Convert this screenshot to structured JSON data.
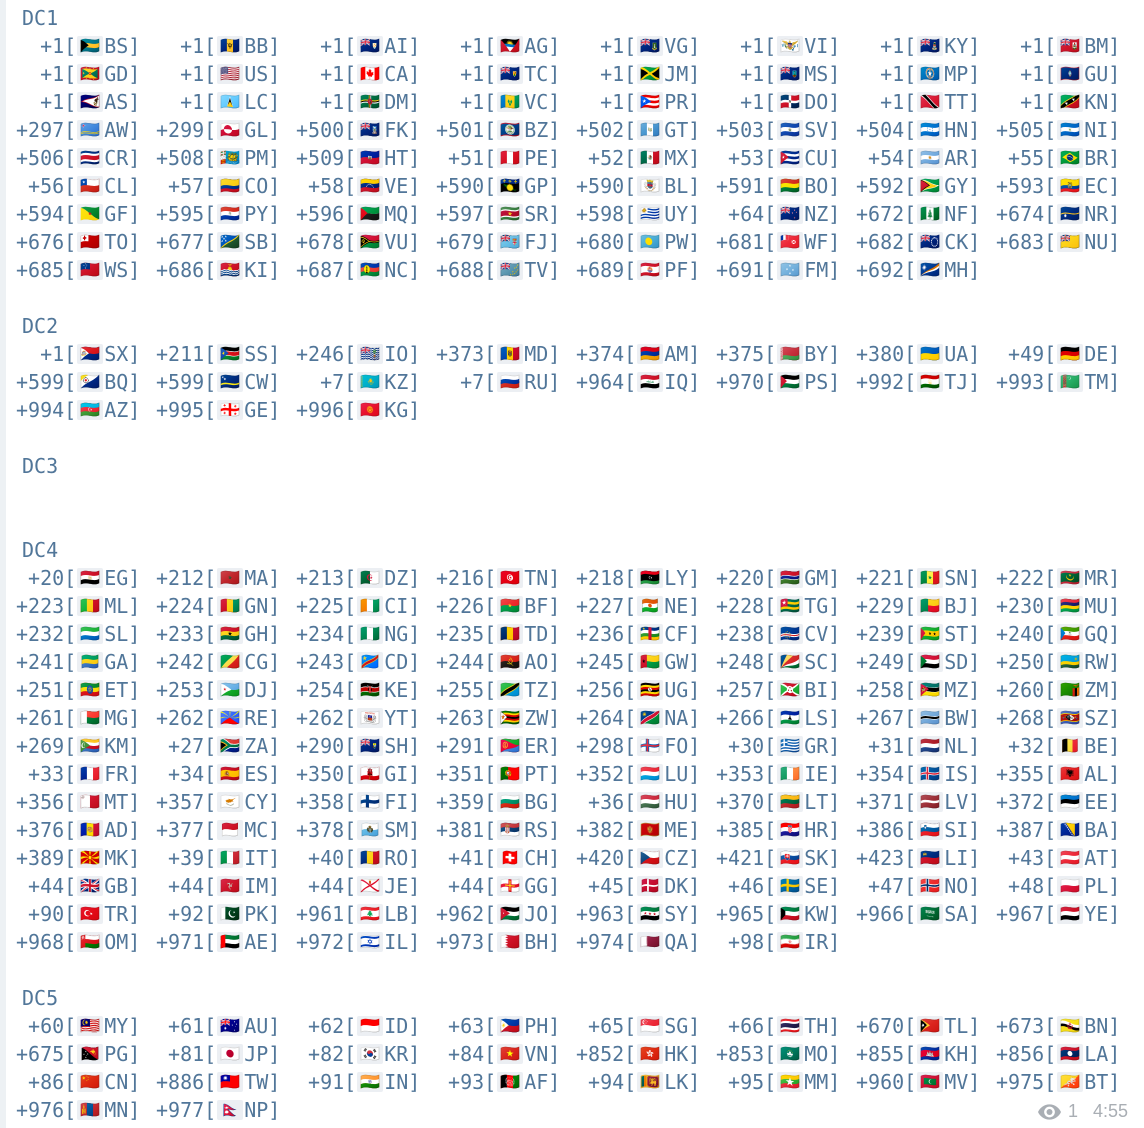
{
  "theme": {
    "background": "#ffffff",
    "text_color": "#517699",
    "meta_color": "#a9aeb4",
    "flag_placeholder_color": "#eceff3"
  },
  "message": {
    "entry_fields": [
      "dial_code",
      "country_iso"
    ],
    "sections": [
      {
        "label": "DC1",
        "entries": [
          [
            "+1",
            "BS"
          ],
          [
            "+1",
            "BB"
          ],
          [
            "+1",
            "AI"
          ],
          [
            "+1",
            "AG"
          ],
          [
            "+1",
            "VG"
          ],
          [
            "+1",
            "VI"
          ],
          [
            "+1",
            "KY"
          ],
          [
            "+1",
            "BM"
          ],
          [
            "+1",
            "GD"
          ],
          [
            "+1",
            "US"
          ],
          [
            "+1",
            "CA"
          ],
          [
            "+1",
            "TC"
          ],
          [
            "+1",
            "JM"
          ],
          [
            "+1",
            "MS"
          ],
          [
            "+1",
            "MP"
          ],
          [
            "+1",
            "GU"
          ],
          [
            "+1",
            "AS"
          ],
          [
            "+1",
            "LC"
          ],
          [
            "+1",
            "DM"
          ],
          [
            "+1",
            "VC"
          ],
          [
            "+1",
            "PR"
          ],
          [
            "+1",
            "DO"
          ],
          [
            "+1",
            "TT"
          ],
          [
            "+1",
            "KN"
          ],
          [
            "+297",
            "AW"
          ],
          [
            "+299",
            "GL"
          ],
          [
            "+500",
            "FK"
          ],
          [
            "+501",
            "BZ"
          ],
          [
            "+502",
            "GT"
          ],
          [
            "+503",
            "SV"
          ],
          [
            "+504",
            "HN"
          ],
          [
            "+505",
            "NI"
          ],
          [
            "+506",
            "CR"
          ],
          [
            "+508",
            "PM"
          ],
          [
            "+509",
            "HT"
          ],
          [
            "+51",
            "PE"
          ],
          [
            "+52",
            "MX"
          ],
          [
            "+53",
            "CU"
          ],
          [
            "+54",
            "AR"
          ],
          [
            "+55",
            "BR"
          ],
          [
            "+56",
            "CL"
          ],
          [
            "+57",
            "CO"
          ],
          [
            "+58",
            "VE"
          ],
          [
            "+590",
            "GP"
          ],
          [
            "+590",
            "BL"
          ],
          [
            "+591",
            "BO"
          ],
          [
            "+592",
            "GY"
          ],
          [
            "+593",
            "EC"
          ],
          [
            "+594",
            "GF"
          ],
          [
            "+595",
            "PY"
          ],
          [
            "+596",
            "MQ"
          ],
          [
            "+597",
            "SR"
          ],
          [
            "+598",
            "UY"
          ],
          [
            "+64",
            "NZ"
          ],
          [
            "+672",
            "NF"
          ],
          [
            "+674",
            "NR"
          ],
          [
            "+676",
            "TO"
          ],
          [
            "+677",
            "SB"
          ],
          [
            "+678",
            "VU"
          ],
          [
            "+679",
            "FJ"
          ],
          [
            "+680",
            "PW"
          ],
          [
            "+681",
            "WF"
          ],
          [
            "+682",
            "CK"
          ],
          [
            "+683",
            "NU"
          ],
          [
            "+685",
            "WS"
          ],
          [
            "+686",
            "KI"
          ],
          [
            "+687",
            "NC"
          ],
          [
            "+688",
            "TV"
          ],
          [
            "+689",
            "PF"
          ],
          [
            "+691",
            "FM"
          ],
          [
            "+692",
            "MH"
          ]
        ]
      },
      {
        "label": "DC2",
        "entries": [
          [
            "+1",
            "SX"
          ],
          [
            "+211",
            "SS"
          ],
          [
            "+246",
            "IO"
          ],
          [
            "+373",
            "MD"
          ],
          [
            "+374",
            "AM"
          ],
          [
            "+375",
            "BY"
          ],
          [
            "+380",
            "UA"
          ],
          [
            "+49",
            "DE"
          ],
          [
            "+599",
            "BQ"
          ],
          [
            "+599",
            "CW"
          ],
          [
            "+7",
            "KZ"
          ],
          [
            "+7",
            "RU"
          ],
          [
            "+964",
            "IQ"
          ],
          [
            "+970",
            "PS"
          ],
          [
            "+992",
            "TJ"
          ],
          [
            "+993",
            "TM"
          ],
          [
            "+994",
            "AZ"
          ],
          [
            "+995",
            "GE"
          ],
          [
            "+996",
            "KG"
          ]
        ]
      },
      {
        "label": "DC3",
        "entries": []
      },
      {
        "label": "DC4",
        "entries": [
          [
            "+20",
            "EG"
          ],
          [
            "+212",
            "MA"
          ],
          [
            "+213",
            "DZ"
          ],
          [
            "+216",
            "TN"
          ],
          [
            "+218",
            "LY"
          ],
          [
            "+220",
            "GM"
          ],
          [
            "+221",
            "SN"
          ],
          [
            "+222",
            "MR"
          ],
          [
            "+223",
            "ML"
          ],
          [
            "+224",
            "GN"
          ],
          [
            "+225",
            "CI"
          ],
          [
            "+226",
            "BF"
          ],
          [
            "+227",
            "NE"
          ],
          [
            "+228",
            "TG"
          ],
          [
            "+229",
            "BJ"
          ],
          [
            "+230",
            "MU"
          ],
          [
            "+232",
            "SL"
          ],
          [
            "+233",
            "GH"
          ],
          [
            "+234",
            "NG"
          ],
          [
            "+235",
            "TD"
          ],
          [
            "+236",
            "CF"
          ],
          [
            "+238",
            "CV"
          ],
          [
            "+239",
            "ST"
          ],
          [
            "+240",
            "GQ"
          ],
          [
            "+241",
            "GA"
          ],
          [
            "+242",
            "CG"
          ],
          [
            "+243",
            "CD"
          ],
          [
            "+244",
            "AO"
          ],
          [
            "+245",
            "GW"
          ],
          [
            "+248",
            "SC"
          ],
          [
            "+249",
            "SD"
          ],
          [
            "+250",
            "RW"
          ],
          [
            "+251",
            "ET"
          ],
          [
            "+253",
            "DJ"
          ],
          [
            "+254",
            "KE"
          ],
          [
            "+255",
            "TZ"
          ],
          [
            "+256",
            "UG"
          ],
          [
            "+257",
            "BI"
          ],
          [
            "+258",
            "MZ"
          ],
          [
            "+260",
            "ZM"
          ],
          [
            "+261",
            "MG"
          ],
          [
            "+262",
            "RE"
          ],
          [
            "+262",
            "YT"
          ],
          [
            "+263",
            "ZW"
          ],
          [
            "+264",
            "NA"
          ],
          [
            "+266",
            "LS"
          ],
          [
            "+267",
            "BW"
          ],
          [
            "+268",
            "SZ"
          ],
          [
            "+269",
            "KM"
          ],
          [
            "+27",
            "ZA"
          ],
          [
            "+290",
            "SH"
          ],
          [
            "+291",
            "ER"
          ],
          [
            "+298",
            "FO"
          ],
          [
            "+30",
            "GR"
          ],
          [
            "+31",
            "NL"
          ],
          [
            "+32",
            "BE"
          ],
          [
            "+33",
            "FR"
          ],
          [
            "+34",
            "ES"
          ],
          [
            "+350",
            "GI"
          ],
          [
            "+351",
            "PT"
          ],
          [
            "+352",
            "LU"
          ],
          [
            "+353",
            "IE"
          ],
          [
            "+354",
            "IS"
          ],
          [
            "+355",
            "AL"
          ],
          [
            "+356",
            "MT"
          ],
          [
            "+357",
            "CY"
          ],
          [
            "+358",
            "FI"
          ],
          [
            "+359",
            "BG"
          ],
          [
            "+36",
            "HU"
          ],
          [
            "+370",
            "LT"
          ],
          [
            "+371",
            "LV"
          ],
          [
            "+372",
            "EE"
          ],
          [
            "+376",
            "AD"
          ],
          [
            "+377",
            "MC"
          ],
          [
            "+378",
            "SM"
          ],
          [
            "+381",
            "RS"
          ],
          [
            "+382",
            "ME"
          ],
          [
            "+385",
            "HR"
          ],
          [
            "+386",
            "SI"
          ],
          [
            "+387",
            "BA"
          ],
          [
            "+389",
            "MK"
          ],
          [
            "+39",
            "IT"
          ],
          [
            "+40",
            "RO"
          ],
          [
            "+41",
            "CH"
          ],
          [
            "+420",
            "CZ"
          ],
          [
            "+421",
            "SK"
          ],
          [
            "+423",
            "LI"
          ],
          [
            "+43",
            "AT"
          ],
          [
            "+44",
            "GB"
          ],
          [
            "+44",
            "IM"
          ],
          [
            "+44",
            "JE"
          ],
          [
            "+44",
            "GG"
          ],
          [
            "+45",
            "DK"
          ],
          [
            "+46",
            "SE"
          ],
          [
            "+47",
            "NO"
          ],
          [
            "+48",
            "PL"
          ],
          [
            "+90",
            "TR"
          ],
          [
            "+92",
            "PK"
          ],
          [
            "+961",
            "LB"
          ],
          [
            "+962",
            "JO"
          ],
          [
            "+963",
            "SY"
          ],
          [
            "+965",
            "KW"
          ],
          [
            "+966",
            "SA"
          ],
          [
            "+967",
            "YE"
          ],
          [
            "+968",
            "OM"
          ],
          [
            "+971",
            "AE"
          ],
          [
            "+972",
            "IL"
          ],
          [
            "+973",
            "BH"
          ],
          [
            "+974",
            "QA"
          ],
          [
            "+98",
            "IR"
          ]
        ]
      },
      {
        "label": "DC5",
        "entries": [
          [
            "+60",
            "MY"
          ],
          [
            "+61",
            "AU"
          ],
          [
            "+62",
            "ID"
          ],
          [
            "+63",
            "PH"
          ],
          [
            "+65",
            "SG"
          ],
          [
            "+66",
            "TH"
          ],
          [
            "+670",
            "TL"
          ],
          [
            "+673",
            "BN"
          ],
          [
            "+675",
            "PG"
          ],
          [
            "+81",
            "JP"
          ],
          [
            "+82",
            "KR"
          ],
          [
            "+84",
            "VN"
          ],
          [
            "+852",
            "HK"
          ],
          [
            "+853",
            "MO"
          ],
          [
            "+855",
            "KH"
          ],
          [
            "+856",
            "LA"
          ],
          [
            "+86",
            "CN"
          ],
          [
            "+886",
            "TW"
          ],
          [
            "+91",
            "IN"
          ],
          [
            "+93",
            "AF"
          ],
          [
            "+94",
            "LK"
          ],
          [
            "+95",
            "MM"
          ],
          [
            "+960",
            "MV"
          ],
          [
            "+975",
            "BT"
          ],
          [
            "+976",
            "MN"
          ],
          [
            "+977",
            "NP"
          ]
        ]
      }
    ],
    "footer": {
      "views": "1",
      "time": "4:55"
    }
  }
}
